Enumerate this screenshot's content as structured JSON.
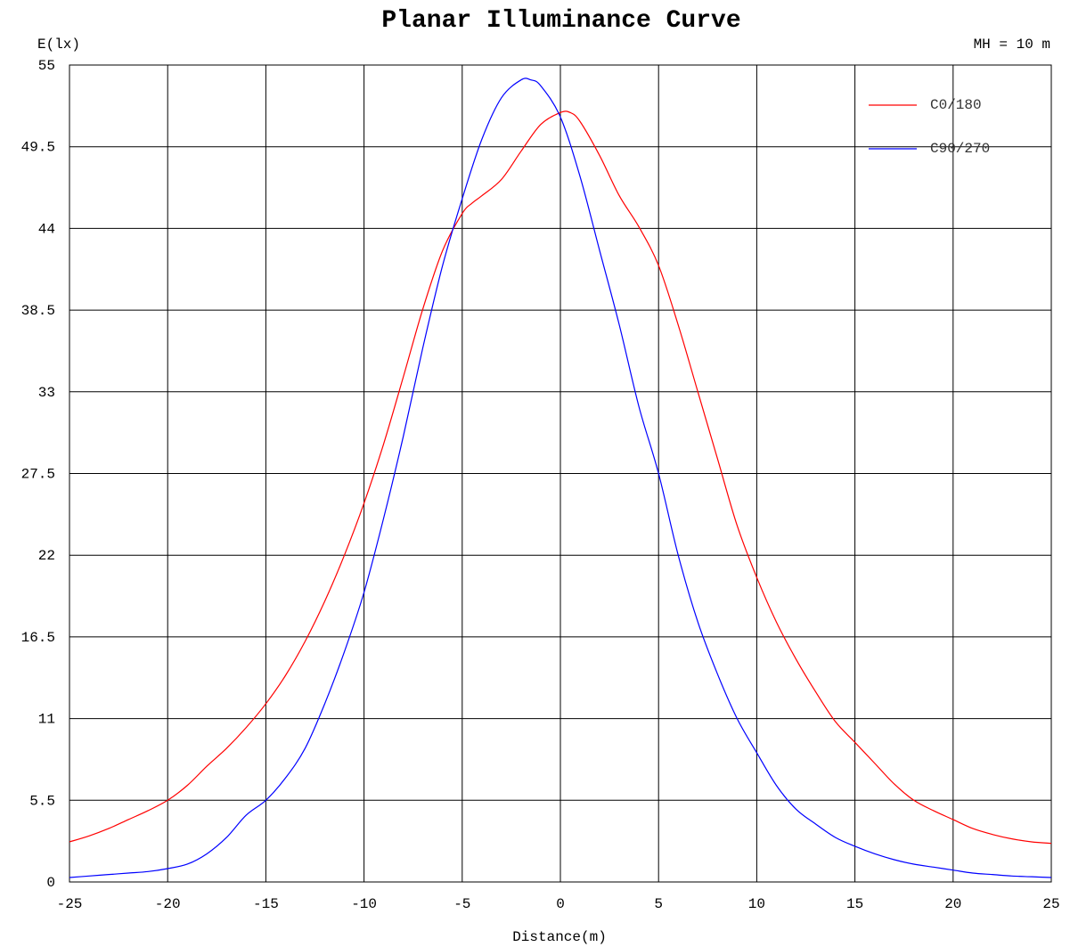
{
  "chart_data": {
    "type": "line",
    "title": "Planar Illuminance Curve",
    "xlabel": "Distance(m)",
    "ylabel": "E(lx)",
    "annotation": "MH = 10 m",
    "xlim": [
      -25,
      25
    ],
    "ylim": [
      0,
      55
    ],
    "x_ticks": [
      "-25",
      "-20",
      "-15",
      "-10",
      "-5",
      "0",
      "5",
      "10",
      "15",
      "20",
      "25"
    ],
    "y_ticks": [
      "0",
      "5.5",
      "11",
      "16.5",
      "22",
      "27.5",
      "33",
      "38.5",
      "44",
      "49.5",
      "55"
    ],
    "grid": true,
    "legend_position": "top-right",
    "series": [
      {
        "name": "C0/180",
        "color": "#ff0000",
        "x": [
          -25,
          -24,
          -23,
          -22,
          -21,
          -20,
          -19,
          -18,
          -17,
          -16,
          -15,
          -14,
          -13,
          -12,
          -11,
          -10,
          -9,
          -8,
          -7,
          -6,
          -5,
          -4.5,
          -4,
          -3,
          -2,
          -1,
          0,
          0.5,
          1,
          2,
          3,
          4,
          5,
          6,
          7,
          8,
          9,
          10,
          11,
          12,
          13,
          14,
          15,
          16,
          17,
          18,
          19,
          20,
          21,
          22,
          23,
          24,
          25
        ],
        "y": [
          2.7,
          3.1,
          3.6,
          4.2,
          4.8,
          5.5,
          6.5,
          7.8,
          9.0,
          10.4,
          12.0,
          13.9,
          16.2,
          18.9,
          22.0,
          25.5,
          29.5,
          34.0,
          38.6,
          42.5,
          45.0,
          45.7,
          46.2,
          47.3,
          49.2,
          51.0,
          51.8,
          51.8,
          51.2,
          48.9,
          46.2,
          44.1,
          41.5,
          37.5,
          33.0,
          28.5,
          24.0,
          20.5,
          17.5,
          15.0,
          12.8,
          10.8,
          9.4,
          8.0,
          6.6,
          5.5,
          4.8,
          4.2,
          3.6,
          3.2,
          2.9,
          2.7,
          2.6
        ]
      },
      {
        "name": "C90/270",
        "color": "#0000ff",
        "x": [
          -25,
          -24,
          -23,
          -22,
          -21,
          -20,
          -19,
          -18,
          -17,
          -16,
          -15,
          -14,
          -13,
          -12,
          -11,
          -10,
          -9,
          -8,
          -7,
          -6,
          -5,
          -4,
          -3,
          -2,
          -1.5,
          -1,
          0,
          1,
          2,
          3,
          4,
          5,
          6,
          7,
          8,
          9,
          10,
          11,
          12,
          13,
          14,
          15,
          16,
          17,
          18,
          19,
          20,
          21,
          22,
          23,
          24,
          25
        ],
        "y": [
          0.3,
          0.4,
          0.5,
          0.6,
          0.7,
          0.9,
          1.2,
          1.9,
          3.0,
          4.5,
          5.5,
          7.0,
          9.0,
          12.0,
          15.5,
          19.5,
          24.5,
          30.0,
          36.0,
          41.5,
          46.0,
          50.0,
          52.8,
          54.0,
          54.0,
          53.6,
          51.5,
          47.5,
          42.5,
          37.5,
          32.0,
          27.5,
          22.0,
          17.5,
          14.0,
          11.0,
          8.7,
          6.5,
          4.9,
          3.9,
          3.0,
          2.4,
          1.9,
          1.5,
          1.2,
          1.0,
          0.8,
          0.6,
          0.5,
          0.4,
          0.35,
          0.3
        ]
      }
    ]
  }
}
